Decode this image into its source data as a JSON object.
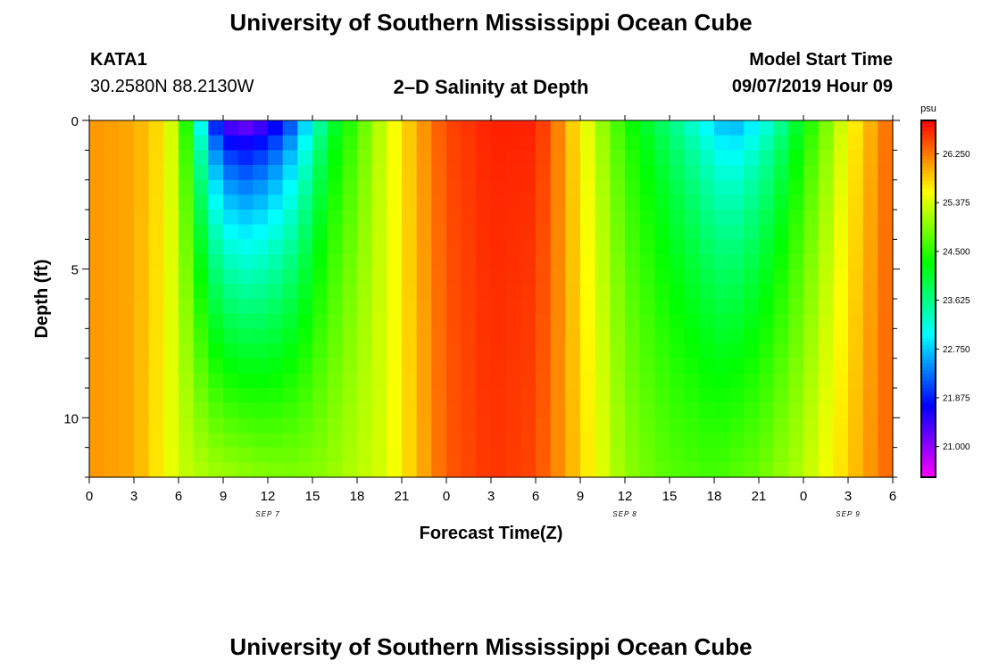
{
  "header": {
    "title": "University of Southern Mississippi Ocean Cube",
    "station": "KATA1",
    "coords": "30.2580N 88.2130W",
    "subtitle": "2–D Salinity at Depth",
    "model_label": "Model Start Time",
    "model_time": "09/07/2019 Hour 09"
  },
  "footer": {
    "title": "University of Southern Mississippi Ocean Cube"
  },
  "chart_data": {
    "type": "heatmap",
    "title": "2–D Salinity at Depth",
    "xlabel": "Forecast Time(Z)",
    "ylabel": "Depth (ft)",
    "x_tick_labels": [
      "0",
      "3",
      "6",
      "9",
      "12",
      "15",
      "18",
      "21",
      "0",
      "3",
      "6",
      "9",
      "12",
      "15",
      "18",
      "21",
      "0",
      "3",
      "6"
    ],
    "x_range_hours": [
      0,
      54
    ],
    "date_labels": [
      {
        "label": "SEP 7",
        "hour": 12
      },
      {
        "label": "SEP 8",
        "hour": 36
      },
      {
        "label": "SEP 9",
        "hour": 51
      }
    ],
    "y_tick_labels": [
      "0",
      "5",
      "10"
    ],
    "y_ticks": [
      0,
      5,
      10
    ],
    "ylim": [
      12,
      0
    ],
    "colorbar": {
      "unit": "psu",
      "tick_labels": [
        "26.250",
        "25.375",
        "24.500",
        "23.625",
        "22.750",
        "21.875",
        "21.000"
      ],
      "ticks": [
        26.25,
        25.375,
        24.5,
        23.625,
        22.75,
        21.875,
        21.0
      ],
      "min": 20.45,
      "max": 26.85
    },
    "depths_ft": [
      0.25,
      0.75,
      1.25,
      1.75,
      2.25,
      2.75,
      3.25,
      3.75,
      4.25,
      4.75,
      5.25,
      5.75,
      6.25,
      6.75,
      7.25,
      7.75,
      8.25,
      8.75,
      9.25,
      9.75,
      10.25,
      10.75,
      11.25,
      11.75
    ],
    "salinity_psu": {
      "description": "Salinity field (psu); values sampled hourly (0..54 h) at the depths above",
      "surface_profile_hours": [
        0,
        3,
        5,
        6,
        7,
        8,
        9,
        10,
        11,
        12,
        13,
        14,
        15,
        16,
        18,
        20,
        22,
        24,
        27,
        30,
        31,
        33,
        36,
        39,
        41,
        42,
        43,
        44,
        46,
        48,
        51,
        54
      ],
      "surface_profile_values": [
        26.1,
        26.0,
        25.7,
        25.0,
        23.8,
        22.0,
        21.2,
        20.8,
        20.9,
        21.2,
        21.6,
        22.2,
        23.0,
        23.8,
        24.6,
        25.4,
        26.0,
        26.5,
        26.7,
        26.7,
        26.4,
        25.6,
        24.4,
        23.6,
        23.0,
        22.7,
        22.4,
        22.6,
        23.2,
        24.2,
        25.5,
        26.4
      ],
      "bottom_profile_hours": [
        0,
        3,
        5,
        6,
        8,
        10,
        12,
        14,
        16,
        18,
        20,
        22,
        24,
        27,
        30,
        33,
        36,
        39,
        42,
        45,
        48,
        51,
        54
      ],
      "bottom_profile_values": [
        26.1,
        26.0,
        25.6,
        25.3,
        25.1,
        25.0,
        24.9,
        24.9,
        25.0,
        25.2,
        25.4,
        25.9,
        26.4,
        26.6,
        26.5,
        25.8,
        25.0,
        24.7,
        24.6,
        24.8,
        25.2,
        25.8,
        26.4
      ]
    }
  }
}
